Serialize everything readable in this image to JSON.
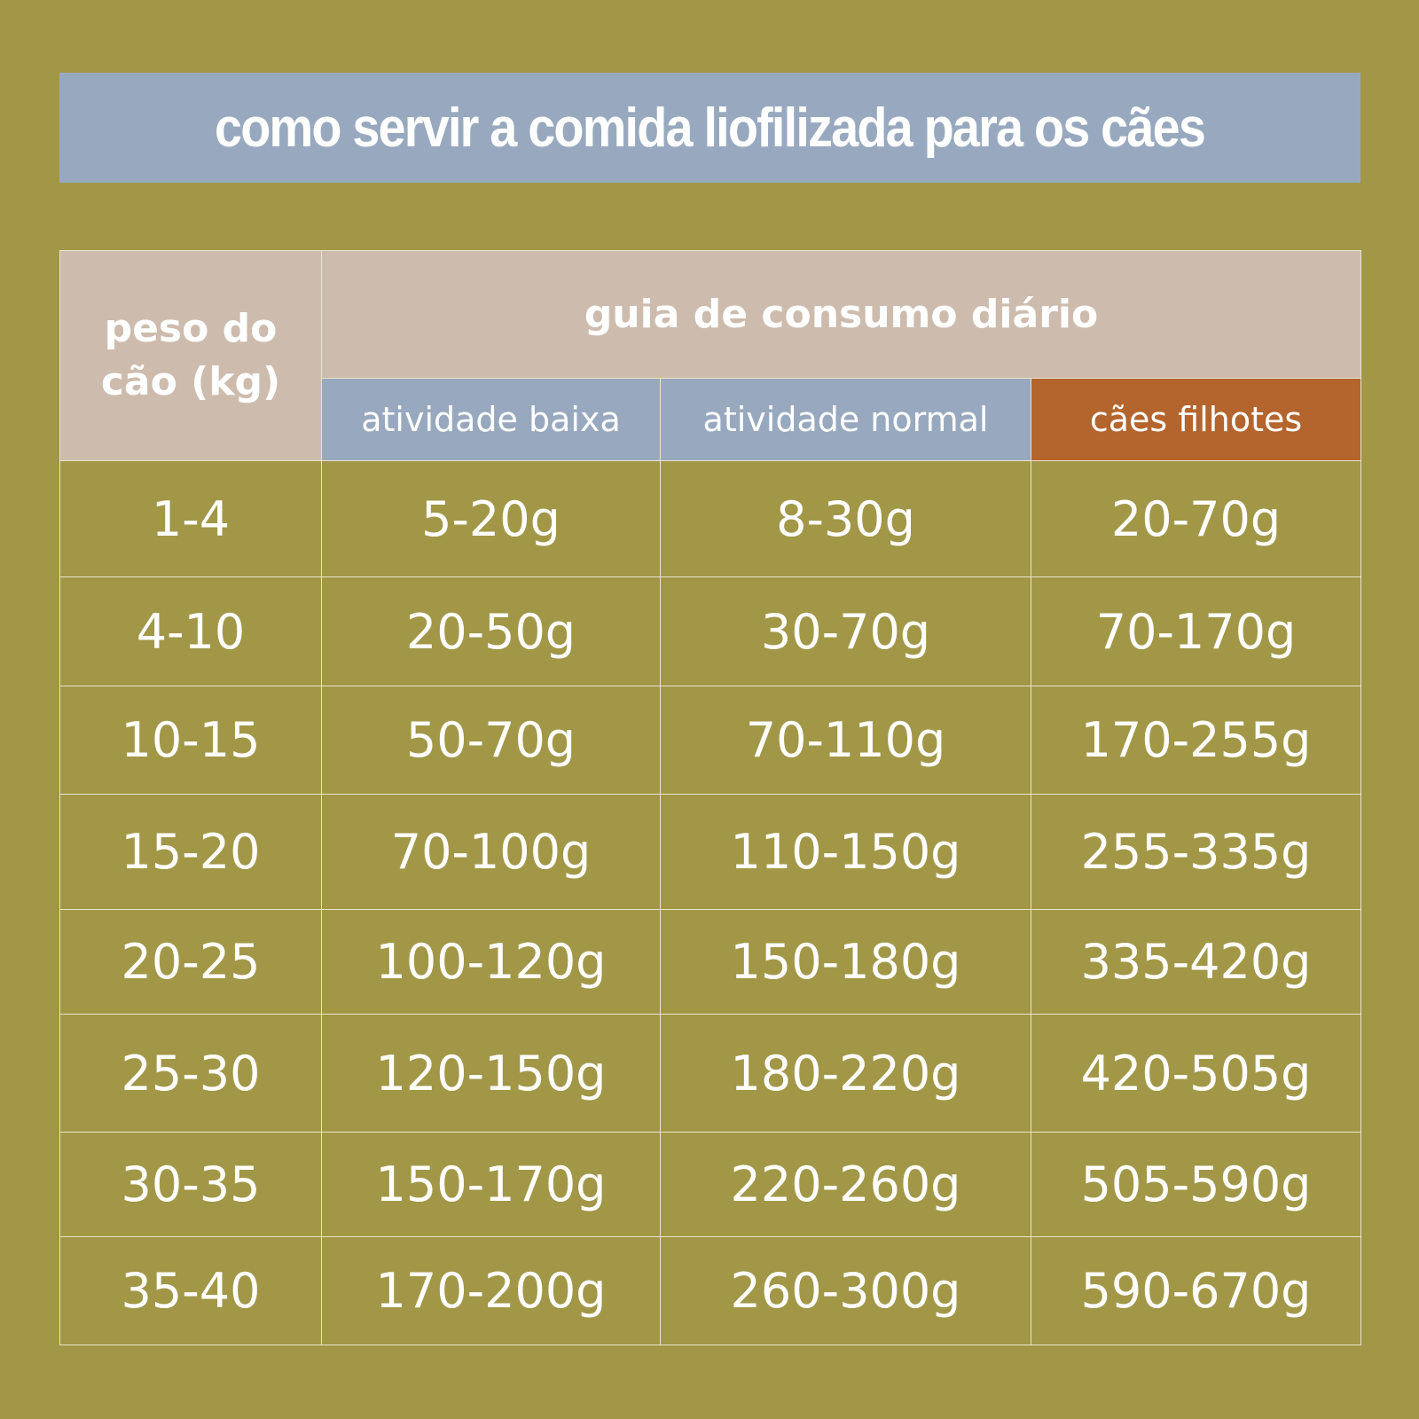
{
  "title": "como servir a comida liofilizada para os cães",
  "colors": {
    "background": "#a19747",
    "title_banner": "#98a9bf",
    "header_tan": "#cdbcad",
    "header_blue": "#98a9bf",
    "header_orange": "#b4652d",
    "text": "#ffffff",
    "grid_line": "#e9e4cc"
  },
  "chart_data": {
    "type": "table",
    "title": "como servir a comida liofilizada para os cães",
    "row_header": "peso do cão (kg)",
    "group_header": "guia de consumo diário",
    "columns": [
      "atividade baixa",
      "atividade normal",
      "cães filhotes"
    ],
    "rows": [
      {
        "weight": "1-4",
        "values": [
          "5-20g",
          "8-30g",
          "20-70g"
        ]
      },
      {
        "weight": "4-10",
        "values": [
          "20-50g",
          "30-70g",
          "70-170g"
        ]
      },
      {
        "weight": "10-15",
        "values": [
          "50-70g",
          "70-110g",
          "170-255g"
        ]
      },
      {
        "weight": "15-20",
        "values": [
          "70-100g",
          "110-150g",
          "255-335g"
        ]
      },
      {
        "weight": "20-25",
        "values": [
          "100-120g",
          "150-180g",
          "335-420g"
        ]
      },
      {
        "weight": "25-30",
        "values": [
          "120-150g",
          "180-220g",
          "420-505g"
        ]
      },
      {
        "weight": "30-35",
        "values": [
          "150-170g",
          "220-260g",
          "505-590g"
        ]
      },
      {
        "weight": "35-40",
        "values": [
          "170-200g",
          "260-300g",
          "590-670g"
        ]
      }
    ]
  }
}
